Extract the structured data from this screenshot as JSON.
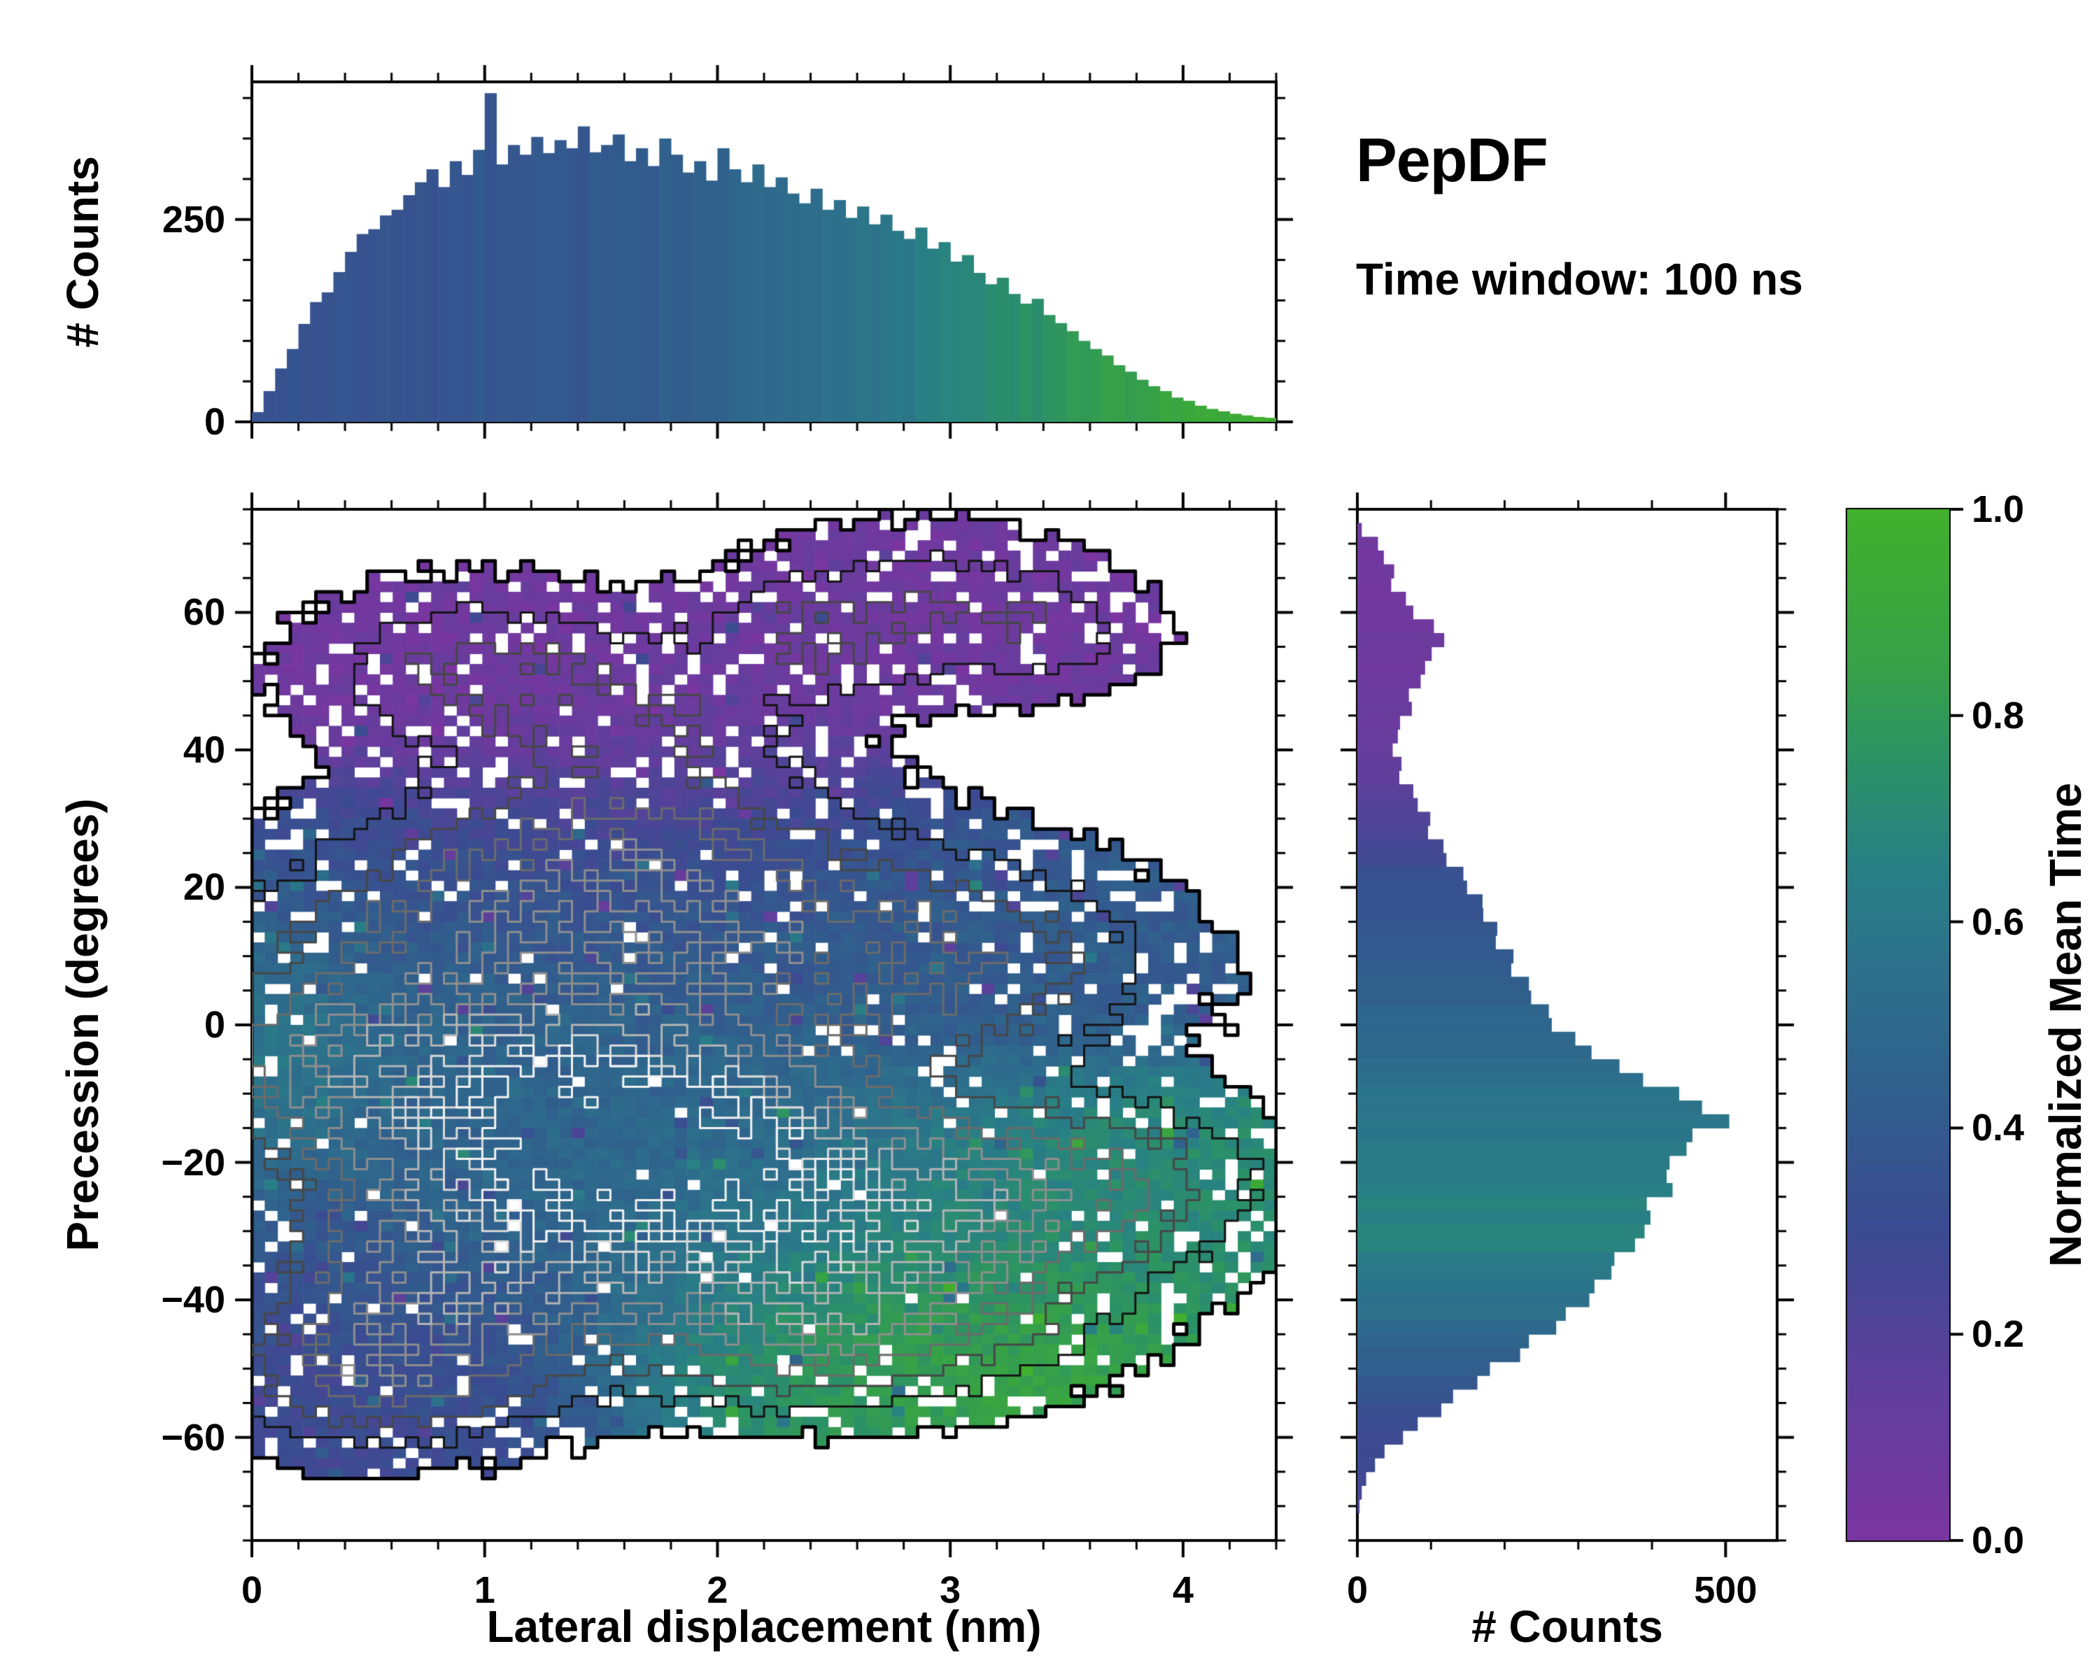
{
  "title": "PepDF",
  "subtitle": "Time window: 100 ns",
  "colors": {
    "background": "#ffffff",
    "axis": "#000000",
    "colormap_stops": [
      [
        0.0,
        "#7a35a0"
      ],
      [
        0.15,
        "#5f3f9c"
      ],
      [
        0.3,
        "#3b4b91"
      ],
      [
        0.45,
        "#2f618c"
      ],
      [
        0.55,
        "#2d708c"
      ],
      [
        0.65,
        "#287f85"
      ],
      [
        0.75,
        "#2b9168"
      ],
      [
        0.85,
        "#36a148"
      ],
      [
        1.0,
        "#41b02c"
      ]
    ],
    "contour_levels": [
      [
        0.22,
        "#000000",
        5
      ],
      [
        0.65,
        "#141414",
        3
      ],
      [
        1.1,
        "#474747",
        3
      ],
      [
        1.6,
        "#6b6b6b",
        3
      ],
      [
        2.1,
        "#8e8e8e",
        3
      ],
      [
        2.6,
        "#b4b4b4",
        3
      ],
      [
        3.1,
        "#d9d9d9",
        3
      ],
      [
        3.5,
        "#f2f2f2",
        3
      ]
    ]
  },
  "chart_data": [
    {
      "id": "top_marginal_histogram",
      "type": "bar",
      "ylabel": "# Counts",
      "x_range": [
        0,
        4.4
      ],
      "y_range": [
        0,
        420
      ],
      "y_ticks": [
        {
          "v": 0,
          "label": "0"
        },
        {
          "v": 250,
          "label": "250"
        }
      ],
      "y_minor_step": 50,
      "x_minor_step": 0.2,
      "bin_width": 0.05,
      "values": [
        12,
        38,
        66,
        90,
        121,
        148,
        160,
        185,
        210,
        232,
        238,
        255,
        262,
        280,
        296,
        312,
        290,
        322,
        305,
        336,
        406,
        318,
        342,
        330,
        352,
        332,
        348,
        338,
        365,
        333,
        342,
        355,
        322,
        338,
        316,
        350,
        330,
        308,
        322,
        298,
        338,
        312,
        296,
        318,
        290,
        302,
        282,
        270,
        288,
        262,
        274,
        252,
        266,
        244,
        256,
        236,
        226,
        240,
        214,
        222,
        198,
        206,
        184,
        170,
        178,
        158,
        146,
        152,
        132,
        122,
        112,
        100,
        90,
        82,
        70,
        62,
        52,
        44,
        38,
        30,
        26,
        20,
        16,
        13,
        10,
        8,
        6,
        5
      ],
      "color_ramp": [
        [
          0,
          0.35
        ],
        [
          1.6,
          0.4
        ],
        [
          2.6,
          0.56
        ],
        [
          3.4,
          0.76
        ],
        [
          4.4,
          1.0
        ]
      ]
    },
    {
      "id": "joint_heatmap",
      "type": "heatmap",
      "xlabel": "Lateral displacement (nm)",
      "ylabel": "Precession (degrees)",
      "value_label": "Normalized Mean Time",
      "x_range": [
        0,
        4.4
      ],
      "y_range": [
        -75,
        75
      ],
      "x_ticks": [
        {
          "v": 0,
          "label": "0"
        },
        {
          "v": 1,
          "label": "1"
        },
        {
          "v": 2,
          "label": "2"
        },
        {
          "v": 3,
          "label": "3"
        },
        {
          "v": 4,
          "label": "4"
        }
      ],
      "y_ticks": [
        {
          "v": -60,
          "label": "−60"
        },
        {
          "v": -40,
          "label": "−40"
        },
        {
          "v": -20,
          "label": "−20"
        },
        {
          "v": 0,
          "label": "0"
        },
        {
          "v": 20,
          "label": "20"
        },
        {
          "v": 40,
          "label": "40"
        },
        {
          "v": 60,
          "label": "60"
        }
      ],
      "x_minor_step": 0.2,
      "y_minor_step": 5,
      "grid": {
        "nx": 80,
        "ny": 100
      },
      "fill_threshold": 0.22,
      "seed": 1337,
      "noise": {
        "density_rel": 0.3,
        "density_abs": 0.12,
        "value": 0.1,
        "speckle_base": 0.26,
        "speckle_slope": 0.1,
        "speckle_min": 0.02,
        "speckle_max": 0.3,
        "outlier_prob": 0.06,
        "outlier_mag": 0.5
      },
      "blobs": [
        {
          "x": 0.95,
          "y": 52,
          "sx": 0.5,
          "sy": 8,
          "amp": 1.1,
          "v": 0.06
        },
        {
          "x": 1.7,
          "y": 45,
          "sx": 0.45,
          "sy": 7,
          "amp": 0.75,
          "v": 0.1
        },
        {
          "x": 2.9,
          "y": 60,
          "sx": 0.5,
          "sy": 8,
          "amp": 1.0,
          "v": 0.07
        },
        {
          "x": 2.35,
          "y": 56,
          "sx": 0.3,
          "sy": 6,
          "amp": 0.6,
          "v": 0.08
        },
        {
          "x": 3.5,
          "y": 57,
          "sx": 0.28,
          "sy": 5,
          "amp": 0.5,
          "v": 0.08
        },
        {
          "x": 1.6,
          "y": 30,
          "sx": 0.65,
          "sy": 8,
          "amp": 1.0,
          "v": 0.18
        },
        {
          "x": 1.1,
          "y": 17,
          "sx": 0.75,
          "sy": 9,
          "amp": 1.2,
          "v": 0.36
        },
        {
          "x": 2.3,
          "y": 14,
          "sx": 0.85,
          "sy": 10,
          "amp": 1.2,
          "v": 0.4
        },
        {
          "x": 3.15,
          "y": 7,
          "sx": 0.55,
          "sy": 9,
          "amp": 0.9,
          "v": 0.42
        },
        {
          "x": 0.55,
          "y": -2,
          "sx": 0.5,
          "sy": 11,
          "amp": 1.2,
          "v": 0.48
        },
        {
          "x": 1.3,
          "y": -15,
          "sx": 0.7,
          "sy": 12,
          "amp": 2.1,
          "v": 0.46
        },
        {
          "x": 2.0,
          "y": -25,
          "sx": 0.85,
          "sy": 12,
          "amp": 2.0,
          "v": 0.52
        },
        {
          "x": 1.7,
          "y": -8,
          "sx": 0.6,
          "sy": 10,
          "amp": 1.2,
          "v": 0.45
        },
        {
          "x": 0.8,
          "y": -40,
          "sx": 0.55,
          "sy": 10,
          "amp": 1.7,
          "v": 0.33
        },
        {
          "x": 0.5,
          "y": -52,
          "sx": 0.45,
          "sy": 7,
          "amp": 1.1,
          "v": 0.28
        },
        {
          "x": 2.9,
          "y": -27,
          "sx": 0.8,
          "sy": 10,
          "amp": 1.2,
          "v": 0.78
        },
        {
          "x": 3.7,
          "y": -22,
          "sx": 0.45,
          "sy": 8,
          "amp": 0.8,
          "v": 0.7
        },
        {
          "x": 2.8,
          "y": -43,
          "sx": 0.55,
          "sy": 8,
          "amp": 1.1,
          "v": 0.92
        },
        {
          "x": 2.2,
          "y": -46,
          "sx": 0.5,
          "sy": 7,
          "amp": 0.9,
          "v": 0.72
        },
        {
          "x": 0.15,
          "y": -5,
          "sx": 0.25,
          "sy": 9,
          "amp": 0.7,
          "v": 0.78
        }
      ]
    },
    {
      "id": "right_marginal_histogram",
      "type": "bar",
      "orientation": "horizontal",
      "xlabel": "# Counts",
      "x_range": [
        0,
        570
      ],
      "x_ticks": [
        {
          "v": 0,
          "label": "0"
        },
        {
          "v": 500,
          "label": "500"
        }
      ],
      "x_minor_step": 100,
      "y_range": [
        -75,
        75
      ],
      "bin_width": 2,
      "values": [
        0,
        6,
        28,
        36,
        50,
        46,
        66,
        76,
        104,
        118,
        101,
        92,
        86,
        70,
        74,
        58,
        55,
        48,
        60,
        57,
        76,
        82,
        99,
        96,
        117,
        121,
        144,
        149,
        170,
        171,
        190,
        188,
        212,
        209,
        233,
        236,
        260,
        264,
        296,
        318,
        356,
        388,
        437,
        468,
        505,
        455,
        447,
        424,
        420,
        428,
        393,
        398,
        390,
        377,
        349,
        345,
        322,
        315,
        283,
        270,
        233,
        221,
        180,
        163,
        130,
        114,
        82,
        62,
        37,
        24,
        12,
        6,
        3,
        0,
        0
      ],
      "color_ramp": [
        [
          -75,
          0.22
        ],
        [
          -55,
          0.33
        ],
        [
          -45,
          0.5
        ],
        [
          -32,
          0.67
        ],
        [
          -25,
          0.66
        ],
        [
          -12,
          0.58
        ],
        [
          0,
          0.47
        ],
        [
          20,
          0.35
        ],
        [
          35,
          0.14
        ],
        [
          45,
          0.08
        ],
        [
          75,
          0.05
        ]
      ]
    },
    {
      "id": "colorbar",
      "type": "colorbar",
      "label": "Normalized Mean Time",
      "range": [
        0,
        1
      ],
      "ticks": [
        {
          "v": 0,
          "label": "0.0"
        },
        {
          "v": 0.2,
          "label": "0.2"
        },
        {
          "v": 0.4,
          "label": "0.4"
        },
        {
          "v": 0.6,
          "label": "0.6"
        },
        {
          "v": 0.8,
          "label": "0.8"
        },
        {
          "v": 1,
          "label": "1.0"
        }
      ]
    }
  ]
}
